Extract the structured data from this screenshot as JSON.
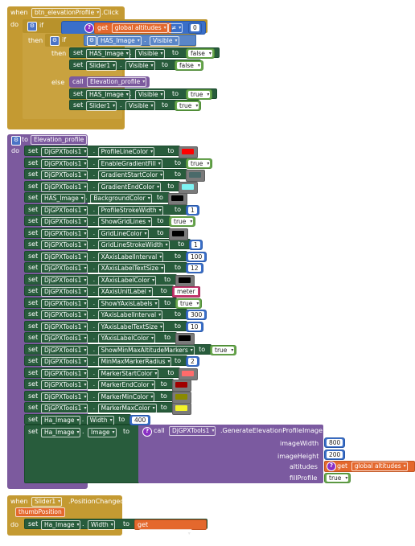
{
  "colors": {
    "event": "#c49a32",
    "procedure": "#7c5a9e",
    "set": "#285c3c",
    "math": "#3a6fc9",
    "logic": "#6aa84f",
    "text": "#c4396f",
    "variable": "#e4682d"
  },
  "kw": {
    "when": "when",
    "do": "do",
    "if": "if",
    "then": "then",
    "else": "else",
    "set": "set",
    "to": "to",
    "call": "call",
    "get": "get",
    "dot": "."
  },
  "block1": {
    "component": "btn_elevationProfile",
    "event": ".Click",
    "var_global": "global altitudes",
    "op": "≠",
    "num0": "0",
    "has_image": "HAS_Image",
    "visible": "Visible",
    "slider": "Slider1",
    "false": "false",
    "true": "true",
    "proc_call": "Elevation_profile"
  },
  "block2": {
    "proc_name": "Elevation_profile",
    "rows": [
      {
        "comp": "DjGPXTools1",
        "prop": "ProfileLineColor",
        "type": "color",
        "value": "#ff0000"
      },
      {
        "comp": "DjGPXTools1",
        "prop": "EnableGradientFill",
        "type": "bool",
        "value": "true"
      },
      {
        "comp": "DjGPXTools1",
        "prop": "GradientStartColor",
        "type": "color",
        "value": "#4a6a6a"
      },
      {
        "comp": "DjGPXTools1",
        "prop": "GradientEndColor",
        "type": "color",
        "value": "#7ff3f3"
      },
      {
        "comp": "HAS_Image",
        "prop": "BackgroundColor",
        "type": "color",
        "value": "#000000"
      },
      {
        "comp": "DjGPXTools1",
        "prop": "ProfileStrokeWidth",
        "type": "num",
        "value": "1"
      },
      {
        "comp": "DjGPXTools1",
        "prop": "ShowGridLines",
        "type": "bool",
        "value": "true"
      },
      {
        "comp": "DjGPXTools1",
        "prop": "GridLineColor",
        "type": "color",
        "value": "#000000"
      },
      {
        "comp": "DjGPXTools1",
        "prop": "GridLineStrokeWidth",
        "type": "num",
        "value": "1"
      },
      {
        "comp": "DjGPXTools1",
        "prop": "XAxisLabelInterval",
        "type": "num",
        "value": "100"
      },
      {
        "comp": "DjGPXTools1",
        "prop": "XAxisLabelTextSize",
        "type": "num",
        "value": "12"
      },
      {
        "comp": "DjGPXTools1",
        "prop": "XAxisLabelColor",
        "type": "color",
        "value": "#000000"
      },
      {
        "comp": "DjGPXTools1",
        "prop": "XAxisUnitLabel",
        "type": "text",
        "value": "meter"
      },
      {
        "comp": "DjGPXTools1",
        "prop": "ShowYAxisLabels",
        "type": "bool",
        "value": "true"
      },
      {
        "comp": "DjGPXTools1",
        "prop": "YAxisLabelInterval",
        "type": "num",
        "value": "300"
      },
      {
        "comp": "DjGPXTools1",
        "prop": "YAxisLabelTextSize",
        "type": "num",
        "value": "10"
      },
      {
        "comp": "DjGPXTools1",
        "prop": "YAxisLabelColor",
        "type": "color",
        "value": "#000000"
      },
      {
        "comp": "DjGPXTools1",
        "prop": "ShowMinMaxAltitudeMarkers",
        "type": "bool",
        "value": "true"
      },
      {
        "comp": "DjGPXTools1",
        "prop": "MinMaxMarkerRadius",
        "type": "num",
        "value": "2"
      },
      {
        "comp": "DjGPXTools1",
        "prop": "MarkerStartColor",
        "type": "color",
        "value": "#ff6b6b"
      },
      {
        "comp": "DjGPXTools1",
        "prop": "MarkerEndColor",
        "type": "color",
        "value": "#a00000"
      },
      {
        "comp": "DjGPXTools1",
        "prop": "MarkerMinColor",
        "type": "color",
        "value": "#8a8a00"
      },
      {
        "comp": "DjGPXTools1",
        "prop": "MarkerMaxColor",
        "type": "color",
        "value": "#f2f22a"
      },
      {
        "comp": "Ha_Image",
        "prop": "Width",
        "type": "num",
        "value": "400"
      }
    ],
    "last_set_comp": "Ha_Image",
    "last_set_prop": "Image",
    "gen_comp": "DjGPXTools1",
    "gen_method": ".GenerateElevationProfileImage",
    "params": [
      {
        "name": "imageWidth",
        "value": "800"
      },
      {
        "name": "imageHeight",
        "value": "200"
      },
      {
        "name": "altitudes",
        "value": "global altitudes"
      },
      {
        "name": "fillProfile",
        "value": "true"
      }
    ]
  },
  "block3": {
    "component": "Slider1",
    "event": ".PositionChanged",
    "param": "thumbPosition",
    "set_comp": "Ha_Image",
    "set_prop": "Width",
    "get_var": "thumbPosition"
  }
}
